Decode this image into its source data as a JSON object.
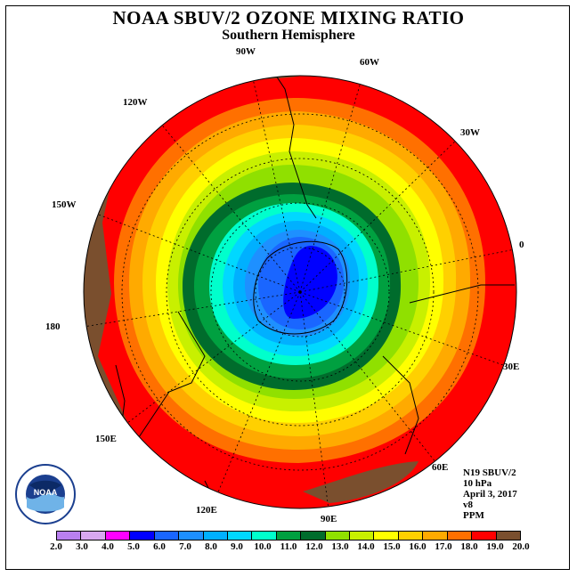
{
  "title": "NOAA SBUV/2 OZONE MIXING RATIO",
  "subtitle": "Southern Hemisphere",
  "longitude_labels": [
    "90W",
    "60W",
    "30W",
    "0",
    "30E",
    "60E",
    "90E",
    "120E",
    "150E",
    "180",
    "150W",
    "120W"
  ],
  "info": {
    "instrument": "N19 SBUV/2",
    "level": "10 hPa",
    "date": "April 3, 2017",
    "version": "v8",
    "units": "PPM"
  },
  "colorbar": {
    "ticks": [
      "2.0",
      "3.0",
      "4.0",
      "5.0",
      "6.0",
      "7.0",
      "8.0",
      "9.0",
      "10.0",
      "11.0",
      "12.0",
      "13.0",
      "14.0",
      "15.0",
      "16.0",
      "17.0",
      "18.0",
      "19.0",
      "20.0"
    ],
    "colors": [
      "#b980f0",
      "#d8a8f0",
      "#ff00ff",
      "#0000ff",
      "#1a66ff",
      "#1e90ff",
      "#00b0ff",
      "#00d8ff",
      "#00ffcc",
      "#00a040",
      "#006c2c",
      "#90e000",
      "#c8f000",
      "#ffff00",
      "#ffd000",
      "#ffaa00",
      "#ff7000",
      "#ff0000",
      "#7a4f2e"
    ]
  },
  "logo_text": "NOAA",
  "logo_ring_text": "NATIONAL OCEANIC AND ATMOSPHERIC ADMINISTRATION · U.S. DEPARTMENT OF COMMERCE"
}
